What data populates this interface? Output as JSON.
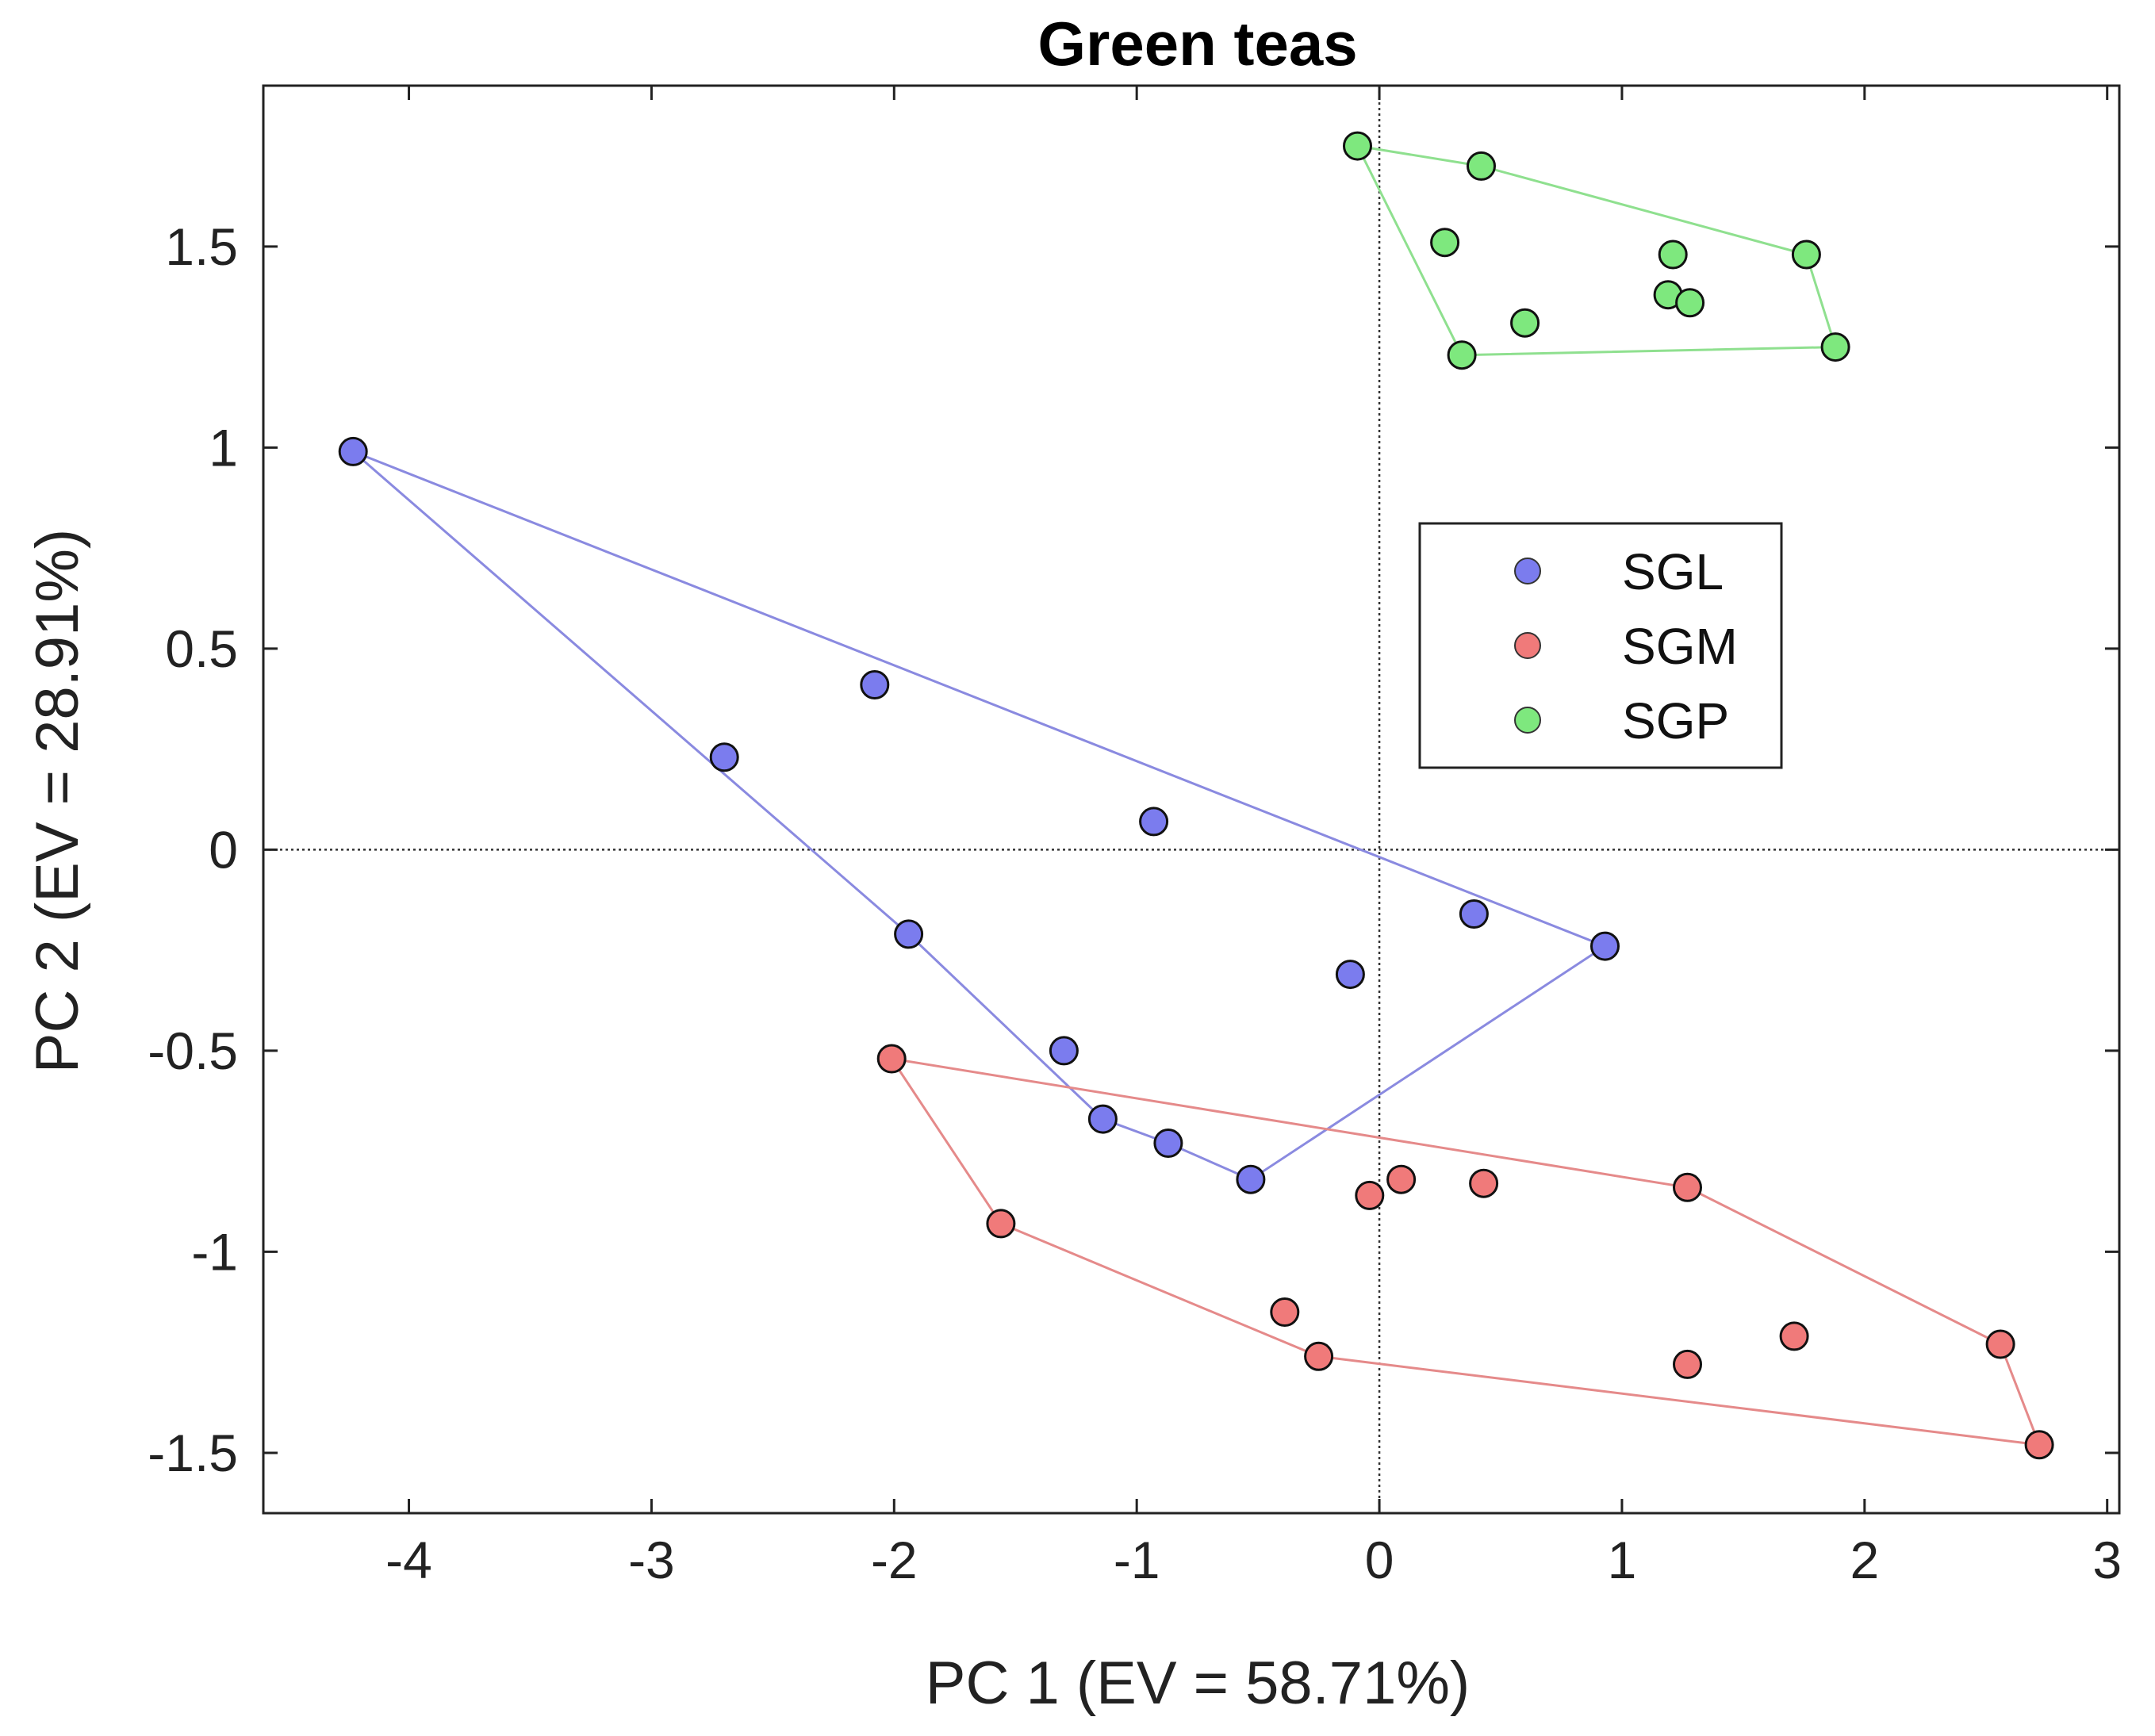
{
  "chart_data": {
    "type": "scatter",
    "title": "Green teas",
    "xlabel": "PC 1 (EV = 58.71%)",
    "ylabel": "PC 2 (EV = 28.91%)",
    "xlim": [
      -4.6,
      3.05
    ],
    "ylim": [
      -1.65,
      1.9
    ],
    "xticks": [
      -4,
      -3,
      -2,
      -1,
      0,
      1,
      2,
      3
    ],
    "yticks": [
      -1.5,
      -1,
      -0.5,
      0,
      0.5,
      1,
      1.5
    ],
    "xtick_labels": [
      "-4",
      "-3",
      "-2",
      "-1",
      "0",
      "1",
      "2",
      "3"
    ],
    "ytick_labels": [
      "-1.5",
      "-1",
      "-0.5",
      "0",
      "0.5",
      "1",
      "1.5"
    ],
    "reference_lines": {
      "x": 0,
      "y": 0,
      "style": "dotted"
    },
    "grid": false,
    "legend_position": "center-right",
    "series": [
      {
        "name": "SGL",
        "color": "#7b7cee",
        "hull_color": "#8a8ae0",
        "points": [
          [
            -4.23,
            0.99
          ],
          [
            -2.7,
            0.23
          ],
          [
            -2.08,
            0.41
          ],
          [
            -0.93,
            0.07
          ],
          [
            -1.94,
            -0.21
          ],
          [
            -1.3,
            -0.5
          ],
          [
            -1.14,
            -0.67
          ],
          [
            -0.87,
            -0.73
          ],
          [
            -0.53,
            -0.82
          ],
          [
            -0.12,
            -0.31
          ],
          [
            0.39,
            -0.16
          ],
          [
            0.93,
            -0.24
          ]
        ],
        "hull": [
          [
            -4.23,
            0.99
          ],
          [
            0.93,
            -0.24
          ],
          [
            -0.53,
            -0.82
          ],
          [
            -0.87,
            -0.73
          ],
          [
            -1.14,
            -0.67
          ],
          [
            -1.94,
            -0.21
          ]
        ]
      },
      {
        "name": "SGM",
        "color": "#f07a7a",
        "hull_color": "#e58a8a",
        "points": [
          [
            -2.01,
            -0.52
          ],
          [
            -1.56,
            -0.93
          ],
          [
            -0.39,
            -1.15
          ],
          [
            -0.25,
            -1.26
          ],
          [
            -0.04,
            -0.86
          ],
          [
            0.09,
            -0.82
          ],
          [
            0.43,
            -0.83
          ],
          [
            1.27,
            -0.84
          ],
          [
            1.27,
            -1.28
          ],
          [
            1.71,
            -1.21
          ],
          [
            2.56,
            -1.23
          ],
          [
            2.72,
            -1.48
          ]
        ],
        "hull": [
          [
            -2.01,
            -0.52
          ],
          [
            1.27,
            -0.84
          ],
          [
            2.56,
            -1.23
          ],
          [
            2.72,
            -1.48
          ],
          [
            -0.25,
            -1.26
          ],
          [
            -1.56,
            -0.93
          ]
        ]
      },
      {
        "name": "SGP",
        "color": "#7ee87e",
        "hull_color": "#8fe08f",
        "points": [
          [
            -0.09,
            1.75
          ],
          [
            0.42,
            1.7
          ],
          [
            0.27,
            1.51
          ],
          [
            1.21,
            1.48
          ],
          [
            1.76,
            1.48
          ],
          [
            1.19,
            1.38
          ],
          [
            1.28,
            1.36
          ],
          [
            0.6,
            1.31
          ],
          [
            0.34,
            1.23
          ],
          [
            1.88,
            1.25
          ]
        ],
        "hull": [
          [
            -0.09,
            1.75
          ],
          [
            0.42,
            1.7
          ],
          [
            1.76,
            1.48
          ],
          [
            1.88,
            1.25
          ],
          [
            0.34,
            1.23
          ]
        ]
      }
    ]
  }
}
